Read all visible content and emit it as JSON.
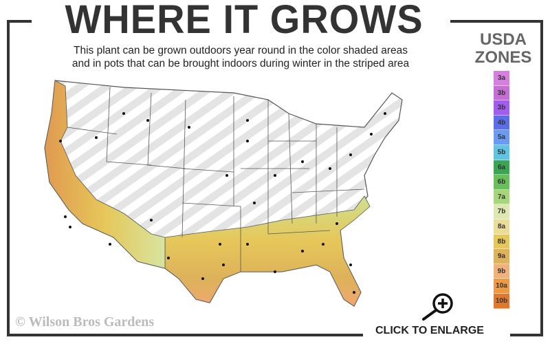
{
  "title": "WHERE IT GROWS",
  "subtitle_line1": "This plant can be grown outdoors year round in the color shaded areas",
  "subtitle_line2": "and in pots that can be brought indoors during winter in the striped area",
  "legend": {
    "title_line1": "USDA",
    "title_line2": "ZONES",
    "zones": [
      {
        "label": "3a",
        "color": "#d67fe0"
      },
      {
        "label": "3b",
        "color": "#c56fd6"
      },
      {
        "label": "3b",
        "color": "#a25cf0"
      },
      {
        "label": "4b",
        "color": "#5a6ee8"
      },
      {
        "label": "5a",
        "color": "#6b9af2"
      },
      {
        "label": "5b",
        "color": "#5ec4e0"
      },
      {
        "label": "6a",
        "color": "#3aa653"
      },
      {
        "label": "6b",
        "color": "#6abf5a"
      },
      {
        "label": "7a",
        "color": "#a7d67a"
      },
      {
        "label": "7b",
        "color": "#dde9b0"
      },
      {
        "label": "8a",
        "color": "#ecdc9a"
      },
      {
        "label": "8b",
        "color": "#e6c75a"
      },
      {
        "label": "9a",
        "color": "#ddb25a"
      },
      {
        "label": "9b",
        "color": "#f0b27c"
      },
      {
        "label": "10a",
        "color": "#ee9a45"
      },
      {
        "label": "10b",
        "color": "#e0782e"
      }
    ]
  },
  "copyright": "© Wilson Bros Gardens",
  "enlarge": {
    "label": "CLICK TO ENLARGE",
    "icon": "zoom-in-icon"
  }
}
